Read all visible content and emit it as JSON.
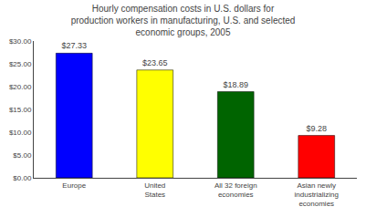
{
  "chart_data": {
    "type": "bar",
    "title": "Hourly compensation costs in U.S. dollars for\nproduction workers in manufacturing, U.S. and selected\neconomic groups, 2005",
    "categories": [
      "Europe",
      "United\nStates",
      "All 32 foreign\neconomies",
      "Asian newly\nindustrializing\neconomies"
    ],
    "values": [
      27.33,
      23.65,
      18.89,
      9.28
    ],
    "value_labels": [
      "$27.33",
      "$23.65",
      "$18.89",
      "$9.28"
    ],
    "data_labels": true,
    "colors": [
      "#0000FF",
      "#FFFF00",
      "#006400",
      "#FF0000"
    ],
    "ylim": [
      0,
      30
    ],
    "yticks": [
      {
        "value": 0,
        "label": "$0.00"
      },
      {
        "value": 5,
        "label": "$5.00"
      },
      {
        "value": 10,
        "label": "$10.00"
      },
      {
        "value": 15,
        "label": "$15.00"
      },
      {
        "value": 20,
        "label": "$20.00"
      },
      {
        "value": 25,
        "label": "$25.00"
      },
      {
        "value": 30,
        "label": "$30.00"
      }
    ],
    "grid": false
  }
}
